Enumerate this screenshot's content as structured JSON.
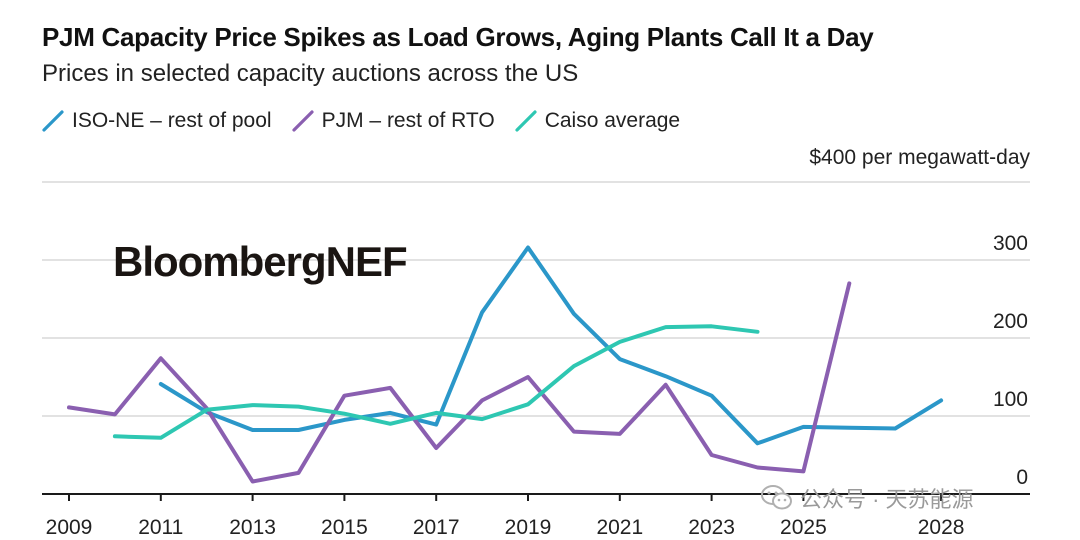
{
  "header": {
    "title": "PJM Capacity Price Spikes as Load Grows, Aging Plants Call It a Day",
    "subtitle": "Prices in selected capacity auctions across the US"
  },
  "watermark": "BloombergNEF",
  "footer_mark": "公众号 · 天苏能源",
  "chart_data": {
    "type": "line",
    "title": "PJM Capacity Price Spikes as Load Grows, Aging Plants Call It a Day",
    "subtitle": "Prices in selected capacity auctions across the US",
    "unit_label": "$400 per megawatt-day",
    "ylim": [
      0,
      400
    ],
    "xlim": [
      2009,
      2029
    ],
    "y_ticks": [
      0,
      100,
      200,
      300
    ],
    "y_tick_labels": [
      "0",
      "100",
      "200",
      "300"
    ],
    "x_ticks": [
      2009,
      2011,
      2013,
      2015,
      2017,
      2019,
      2021,
      2023,
      2025,
      2028
    ],
    "x_tick_labels": [
      "2009",
      "2011",
      "2013",
      "2015",
      "2017",
      "2019",
      "2021",
      "2023",
      "2025",
      "2028"
    ],
    "grid": true,
    "legend_position": "top-left",
    "series": [
      {
        "name": "ISO-NE – rest of pool",
        "color": "#2b97c9",
        "x": [
          2011,
          2012,
          2013,
          2014,
          2015,
          2016,
          2017,
          2018,
          2019,
          2020,
          2021,
          2022,
          2023,
          2024,
          2025,
          2026,
          2027,
          2028
        ],
        "y": [
          141,
          105,
          82,
          82,
          95,
          104,
          89,
          233,
          316,
          231,
          173,
          151,
          126,
          65,
          86,
          85,
          84,
          120
        ]
      },
      {
        "name": "PJM – rest of RTO",
        "color": "#8a5fb0",
        "x": [
          2009,
          2010,
          2011,
          2012,
          2013,
          2014,
          2015,
          2016,
          2017,
          2018,
          2019,
          2020,
          2021,
          2022,
          2023,
          2024,
          2025,
          2026
        ],
        "y": [
          111,
          102,
          174,
          110,
          16,
          27,
          126,
          136,
          59,
          120,
          150,
          80,
          77,
          140,
          50,
          34,
          29,
          270
        ]
      },
      {
        "name": "Caiso average",
        "color": "#2ec7b2",
        "x": [
          2010,
          2011,
          2012,
          2013,
          2014,
          2015,
          2016,
          2017,
          2018,
          2019,
          2020,
          2021,
          2022,
          2023,
          2024
        ],
        "y": [
          74,
          72,
          108,
          114,
          112,
          103,
          90,
          104,
          96,
          115,
          164,
          195,
          214,
          215,
          208
        ]
      }
    ]
  }
}
